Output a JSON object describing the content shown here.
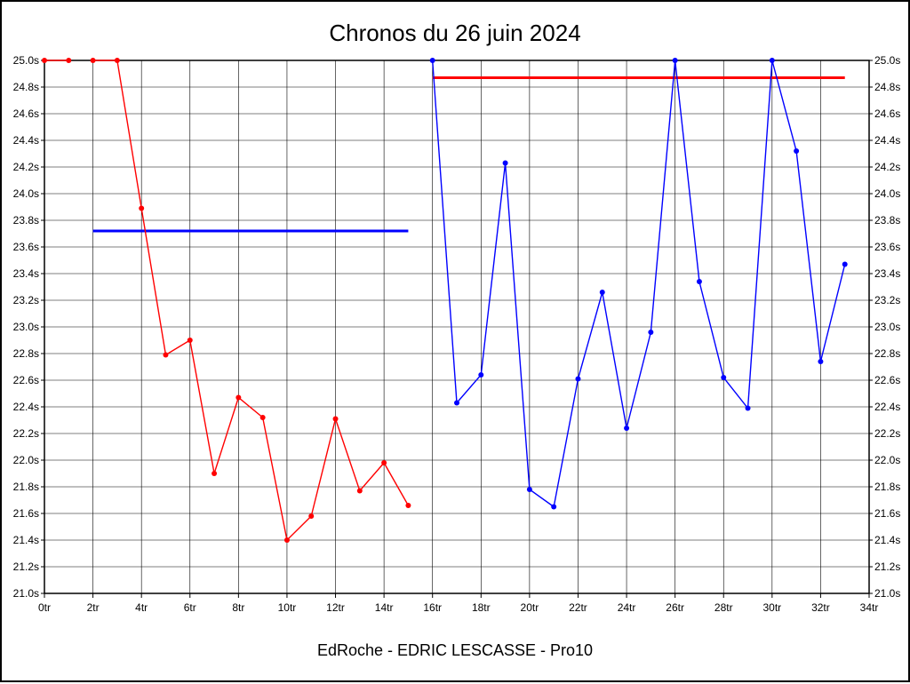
{
  "chart_data": {
    "type": "line",
    "title": "Chronos du 26 juin 2024",
    "footer": "EdRoche - EDRIC LESCASSE - Pro10",
    "x_unit": "tr",
    "y_unit": "s",
    "xlim": [
      0,
      34
    ],
    "ylim": [
      21.0,
      25.0
    ],
    "x_tick_step": 2,
    "y_tick_step": 0.2,
    "grid": true,
    "grid_color": "#000000",
    "axis_color": "#000000",
    "series": [
      {
        "name": "first-run-red",
        "color": "#ff0000",
        "points": [
          [
            0,
            25.0
          ],
          [
            1,
            25.0
          ],
          null,
          [
            2,
            25.0
          ],
          [
            3,
            25.0
          ],
          [
            4,
            23.89
          ],
          [
            5,
            22.79
          ],
          [
            6,
            22.9
          ],
          [
            7,
            21.9
          ],
          [
            8,
            22.47
          ],
          [
            9,
            22.32
          ],
          [
            10,
            21.4
          ],
          [
            11,
            21.58
          ],
          [
            12,
            22.31
          ],
          [
            13,
            21.77
          ],
          [
            14,
            21.98
          ],
          [
            15,
            21.66
          ]
        ]
      },
      {
        "name": "second-run-blue",
        "color": "#0000ff",
        "points": [
          [
            16,
            25.0
          ],
          [
            17,
            22.43
          ],
          [
            18,
            22.64
          ],
          [
            19,
            24.23
          ],
          [
            20,
            21.78
          ],
          [
            21,
            21.65
          ],
          [
            22,
            22.61
          ],
          [
            23,
            23.26
          ],
          [
            24,
            22.24
          ],
          [
            25,
            22.96
          ],
          [
            26,
            25.0
          ],
          [
            27,
            23.34
          ],
          [
            28,
            22.62
          ],
          [
            29,
            22.39
          ],
          [
            30,
            25.0
          ],
          [
            31,
            24.32
          ],
          [
            32,
            22.74
          ],
          [
            33,
            23.47
          ]
        ]
      }
    ],
    "reference_lines": [
      {
        "name": "average-line-blue",
        "color": "#0000ff",
        "y": 23.72,
        "x_start": 2,
        "x_end": 15
      },
      {
        "name": "average-line-red",
        "color": "#ff0000",
        "y": 24.87,
        "x_start": 16,
        "x_end": 33
      }
    ]
  }
}
